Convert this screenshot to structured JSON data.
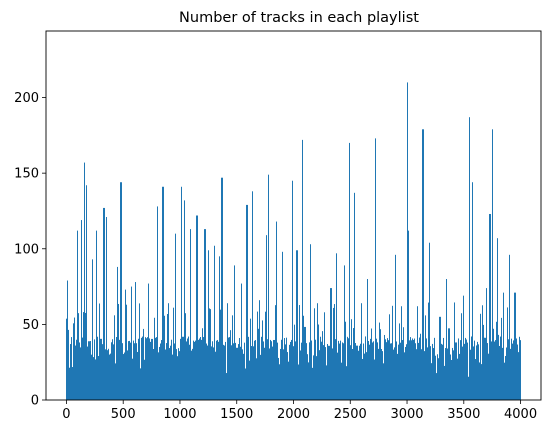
{
  "chart_data": {
    "type": "bar",
    "title": "Number of tracks in each playlist",
    "xlabel": "",
    "ylabel": "",
    "xlim": [
      -180,
      4180
    ],
    "ylim": [
      0,
      244
    ],
    "x_ticks": [
      0,
      500,
      1000,
      1500,
      2000,
      2500,
      3000,
      3500,
      4000
    ],
    "y_ticks": [
      0,
      50,
      100,
      150,
      200
    ],
    "bar_color": "#1f77b4",
    "grid": false,
    "legend": "none",
    "n_bars": 4000,
    "peaks": [
      {
        "x": 8,
        "value": 79
      },
      {
        "x": 40,
        "value": 37
      },
      {
        "x": 95,
        "value": 112
      },
      {
        "x": 130,
        "value": 119
      },
      {
        "x": 155,
        "value": 157
      },
      {
        "x": 180,
        "value": 142
      },
      {
        "x": 230,
        "value": 93
      },
      {
        "x": 265,
        "value": 112
      },
      {
        "x": 330,
        "value": 127
      },
      {
        "x": 350,
        "value": 121
      },
      {
        "x": 420,
        "value": 56
      },
      {
        "x": 450,
        "value": 88
      },
      {
        "x": 480,
        "value": 144
      },
      {
        "x": 520,
        "value": 73
      },
      {
        "x": 570,
        "value": 75
      },
      {
        "x": 610,
        "value": 78
      },
      {
        "x": 680,
        "value": 47
      },
      {
        "x": 720,
        "value": 77
      },
      {
        "x": 800,
        "value": 128
      },
      {
        "x": 850,
        "value": 141
      },
      {
        "x": 900,
        "value": 64
      },
      {
        "x": 960,
        "value": 110
      },
      {
        "x": 1010,
        "value": 141
      },
      {
        "x": 1040,
        "value": 132
      },
      {
        "x": 1090,
        "value": 113
      },
      {
        "x": 1150,
        "value": 122
      },
      {
        "x": 1220,
        "value": 113
      },
      {
        "x": 1250,
        "value": 99
      },
      {
        "x": 1300,
        "value": 102
      },
      {
        "x": 1350,
        "value": 95
      },
      {
        "x": 1370,
        "value": 147
      },
      {
        "x": 1420,
        "value": 64
      },
      {
        "x": 1480,
        "value": 89
      },
      {
        "x": 1540,
        "value": 77
      },
      {
        "x": 1590,
        "value": 129
      },
      {
        "x": 1640,
        "value": 138
      },
      {
        "x": 1700,
        "value": 66
      },
      {
        "x": 1760,
        "value": 109
      },
      {
        "x": 1780,
        "value": 149
      },
      {
        "x": 1850,
        "value": 118
      },
      {
        "x": 1900,
        "value": 98
      },
      {
        "x": 1990,
        "value": 145
      },
      {
        "x": 2030,
        "value": 99
      },
      {
        "x": 2080,
        "value": 172
      },
      {
        "x": 2150,
        "value": 103
      },
      {
        "x": 2210,
        "value": 64
      },
      {
        "x": 2270,
        "value": 58
      },
      {
        "x": 2330,
        "value": 74
      },
      {
        "x": 2380,
        "value": 97
      },
      {
        "x": 2450,
        "value": 89
      },
      {
        "x": 2490,
        "value": 170
      },
      {
        "x": 2540,
        "value": 137
      },
      {
        "x": 2600,
        "value": 64
      },
      {
        "x": 2650,
        "value": 80
      },
      {
        "x": 2720,
        "value": 173
      },
      {
        "x": 2800,
        "value": 43
      },
      {
        "x": 2900,
        "value": 96
      },
      {
        "x": 2950,
        "value": 62
      },
      {
        "x": 3000,
        "value": 210
      },
      {
        "x": 3010,
        "value": 112
      },
      {
        "x": 3090,
        "value": 62
      },
      {
        "x": 3140,
        "value": 179
      },
      {
        "x": 3200,
        "value": 104
      },
      {
        "x": 3290,
        "value": 55
      },
      {
        "x": 3350,
        "value": 80
      },
      {
        "x": 3420,
        "value": 46
      },
      {
        "x": 3500,
        "value": 69
      },
      {
        "x": 3550,
        "value": 187
      },
      {
        "x": 3580,
        "value": 144
      },
      {
        "x": 3650,
        "value": 57
      },
      {
        "x": 3700,
        "value": 74
      },
      {
        "x": 3730,
        "value": 123
      },
      {
        "x": 3750,
        "value": 179
      },
      {
        "x": 3800,
        "value": 107
      },
      {
        "x": 3850,
        "value": 71
      },
      {
        "x": 3900,
        "value": 96
      },
      {
        "x": 3950,
        "value": 71
      },
      {
        "x": 3990,
        "value": 33
      }
    ]
  }
}
